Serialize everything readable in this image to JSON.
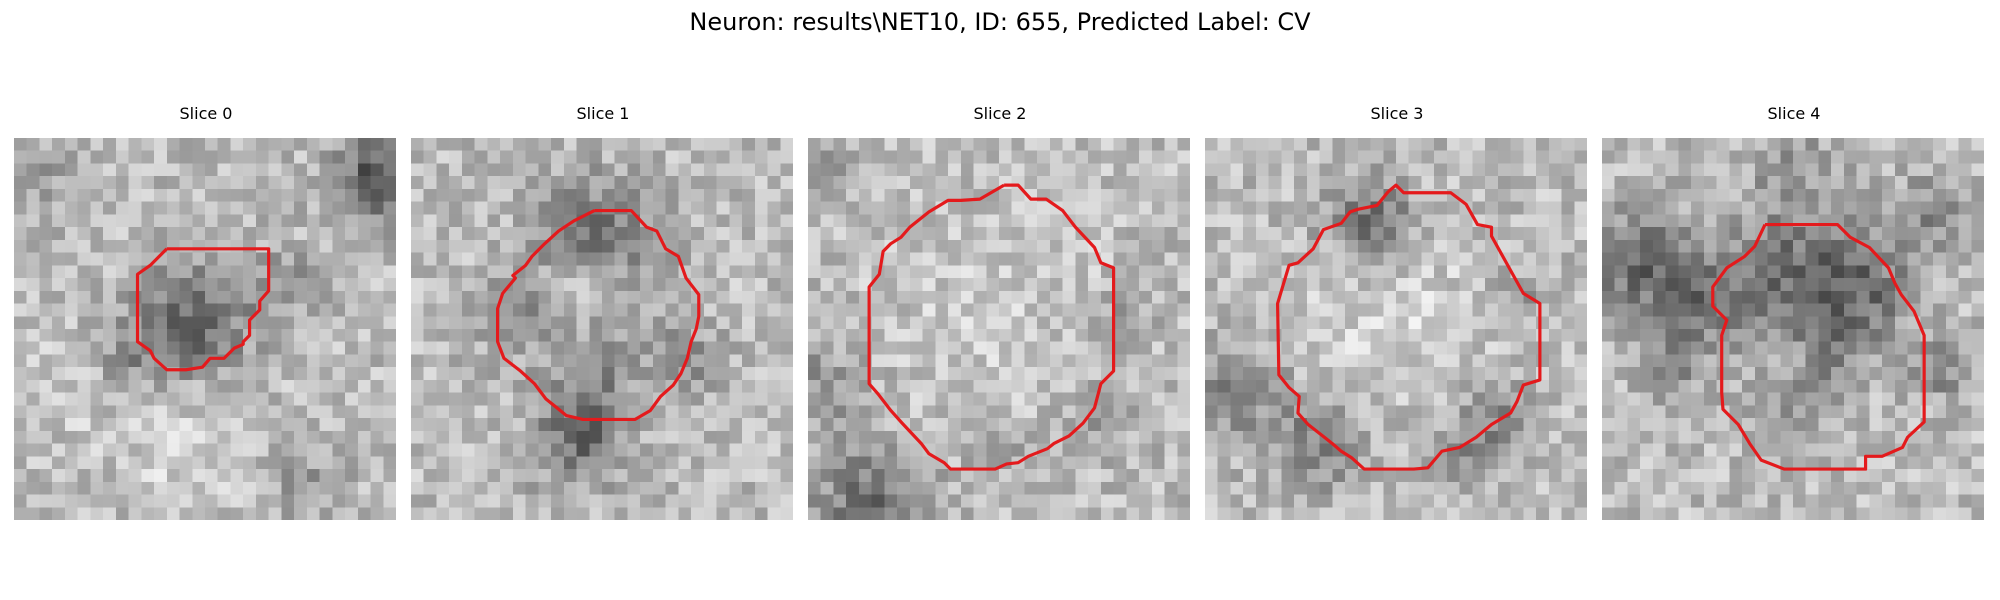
{
  "figure": {
    "title": "Neuron: results\\NET10, ID: 655, Predicted Label: CV",
    "outline_color": "#e41a1c",
    "colormap": "grayscale",
    "grid_size": 30
  },
  "panels": [
    {
      "title": "Slice 0",
      "seed": 101,
      "contour": [
        [
          12,
          8.7
        ],
        [
          20,
          8.7
        ],
        [
          20,
          12
        ],
        [
          19.3,
          12.8
        ],
        [
          19.3,
          13.5
        ],
        [
          18.5,
          14.3
        ],
        [
          18.5,
          15.5
        ],
        [
          18,
          16
        ],
        [
          18,
          16.2
        ],
        [
          17.3,
          16.5
        ],
        [
          16.5,
          17.3
        ],
        [
          15.4,
          17.3
        ],
        [
          14.8,
          18
        ],
        [
          13.5,
          18.2
        ],
        [
          12,
          18.2
        ],
        [
          11,
          17.3
        ],
        [
          10.7,
          16.7
        ],
        [
          9.7,
          16
        ],
        [
          9.7,
          10.7
        ],
        [
          10.7,
          10
        ],
        [
          12,
          8.7
        ]
      ],
      "blobs": [
        [
          14,
          14.5,
          3,
          -90
        ],
        [
          28.5,
          3,
          2.4,
          -100
        ],
        [
          8.5,
          17.5,
          2,
          -40
        ],
        [
          21,
          11.5,
          2.2,
          -35
        ],
        [
          2,
          3,
          2.4,
          -30
        ],
        [
          22.5,
          27,
          2.4,
          -30
        ],
        [
          14,
          25,
          3.5,
          25
        ],
        [
          4,
          19,
          3,
          20
        ]
      ]
    },
    {
      "title": "Slice 1",
      "seed": 202,
      "contour": [
        [
          14.4,
          5.7
        ],
        [
          17.3,
          5.7
        ],
        [
          18.5,
          7
        ],
        [
          19.3,
          7.3
        ],
        [
          20,
          8.7
        ],
        [
          21,
          9.3
        ],
        [
          21.6,
          11
        ],
        [
          22.6,
          12.3
        ],
        [
          22.6,
          14
        ],
        [
          22.4,
          15
        ],
        [
          22,
          16
        ],
        [
          21.7,
          17.3
        ],
        [
          21.2,
          18.5
        ],
        [
          20.6,
          19.4
        ],
        [
          19.6,
          20.3
        ],
        [
          18.8,
          21.4
        ],
        [
          17.6,
          22.1
        ],
        [
          16.5,
          22.1
        ],
        [
          13.5,
          22.1
        ],
        [
          12.2,
          21.8
        ],
        [
          11.6,
          21.3
        ],
        [
          10.6,
          20.5
        ],
        [
          9.7,
          19.3
        ],
        [
          8.6,
          18.3
        ],
        [
          7.3,
          17.3
        ],
        [
          6.8,
          16
        ],
        [
          6.8,
          13.4
        ],
        [
          7.2,
          12.2
        ],
        [
          8.2,
          11
        ],
        [
          8,
          10.8
        ],
        [
          9,
          10
        ],
        [
          9.5,
          9.3
        ],
        [
          10.5,
          8.3
        ],
        [
          11.6,
          7.3
        ],
        [
          12.8,
          6.5
        ],
        [
          14.4,
          5.7
        ]
      ],
      "blobs": [
        [
          14.5,
          7.5,
          3.2,
          -70
        ],
        [
          13,
          24,
          2.5,
          -70
        ],
        [
          8,
          14,
          2,
          -55
        ],
        [
          21.5,
          17.5,
          2,
          -50
        ],
        [
          14,
          20,
          2.5,
          -45
        ],
        [
          13.5,
          12,
          1.6,
          30
        ],
        [
          16,
          16,
          2,
          -25
        ]
      ]
    },
    {
      "title": "Slice 2",
      "seed": 303,
      "contour": [
        [
          15.4,
          3.7
        ],
        [
          16.5,
          3.7
        ],
        [
          17.5,
          4.8
        ],
        [
          18.7,
          4.8
        ],
        [
          20,
          5.7
        ],
        [
          21,
          7
        ],
        [
          22.5,
          8.6
        ],
        [
          23,
          9.8
        ],
        [
          24,
          10.2
        ],
        [
          24,
          18.3
        ],
        [
          23,
          19.3
        ],
        [
          22.5,
          21.2
        ],
        [
          21.6,
          22.4
        ],
        [
          20.5,
          23.4
        ],
        [
          19.3,
          24
        ],
        [
          18.8,
          24.4
        ],
        [
          17.3,
          25
        ],
        [
          16.5,
          25.5
        ],
        [
          15.6,
          25.6
        ],
        [
          14.7,
          26
        ],
        [
          13,
          26
        ],
        [
          12.8,
          26
        ],
        [
          11.2,
          26
        ],
        [
          10.7,
          25.5
        ],
        [
          9.5,
          24.8
        ],
        [
          8.9,
          24
        ],
        [
          7.4,
          22.4
        ],
        [
          6.5,
          21.4
        ],
        [
          5.5,
          20.1
        ],
        [
          4.8,
          19.3
        ],
        [
          4.8,
          17.3
        ],
        [
          4.8,
          11.7
        ],
        [
          5.6,
          10.7
        ],
        [
          5.9,
          8.9
        ],
        [
          6.5,
          8.3
        ],
        [
          7.3,
          7.8
        ],
        [
          8,
          7
        ],
        [
          9.5,
          5.8
        ],
        [
          11,
          4.9
        ],
        [
          12,
          4.9
        ],
        [
          13.5,
          4.8
        ],
        [
          15.4,
          3.7
        ]
      ],
      "blobs": [
        [
          5,
          28.5,
          3,
          -80
        ],
        [
          1,
          19.5,
          2.5,
          -40
        ],
        [
          23,
          22,
          2,
          -35
        ],
        [
          15,
          24.5,
          1.5,
          -30
        ],
        [
          1,
          2,
          2.4,
          -20
        ],
        [
          25,
          14,
          1.5,
          -25
        ],
        [
          14,
          14,
          6,
          15
        ]
      ]
    },
    {
      "title": "Slice 3",
      "seed": 404,
      "contour": [
        [
          14.4,
          4.2
        ],
        [
          15,
          3.7
        ],
        [
          15.6,
          4.3
        ],
        [
          19.3,
          4.3
        ],
        [
          20.5,
          5.2
        ],
        [
          21.4,
          6.8
        ],
        [
          22.5,
          7
        ],
        [
          22.5,
          7.7
        ],
        [
          25,
          12.2
        ],
        [
          26.3,
          13
        ],
        [
          26.3,
          19
        ],
        [
          25,
          19.4
        ],
        [
          24.5,
          20.7
        ],
        [
          24,
          21.6
        ],
        [
          22.5,
          22.5
        ],
        [
          21.3,
          23.5
        ],
        [
          20,
          24.3
        ],
        [
          18.6,
          24.6
        ],
        [
          17.5,
          25.9
        ],
        [
          16.4,
          26
        ],
        [
          15.6,
          26
        ],
        [
          12.5,
          26
        ],
        [
          11.5,
          25.1
        ],
        [
          10.7,
          24.6
        ],
        [
          10,
          24
        ],
        [
          9.5,
          23.6
        ],
        [
          8.1,
          22.5
        ],
        [
          7.3,
          21.6
        ],
        [
          7.4,
          20.3
        ],
        [
          6.6,
          19.6
        ],
        [
          5.8,
          18.6
        ],
        [
          5.7,
          13
        ],
        [
          6.6,
          10
        ],
        [
          7.3,
          9.8
        ],
        [
          8.5,
          8.7
        ],
        [
          9.3,
          7.2
        ],
        [
          10.7,
          6.7
        ],
        [
          11.4,
          5.8
        ],
        [
          12,
          5.6
        ],
        [
          13.5,
          5.3
        ],
        [
          14.4,
          4.2
        ]
      ],
      "blobs": [
        [
          13,
          6.5,
          2.5,
          -75
        ],
        [
          2,
          20,
          2.8,
          -55
        ],
        [
          9,
          24,
          2.5,
          -60
        ],
        [
          23,
          22,
          2,
          -50
        ],
        [
          25,
          12.5,
          1.5,
          -40
        ],
        [
          20,
          24.5,
          1.8,
          -40
        ],
        [
          15,
          14,
          5,
          25
        ]
      ]
    },
    {
      "title": "Slice 4",
      "seed": 505,
      "contour": [
        [
          12.8,
          6.8
        ],
        [
          18.5,
          6.8
        ],
        [
          19.5,
          7.8
        ],
        [
          21,
          8.6
        ],
        [
          22.5,
          10.2
        ],
        [
          23,
          11.4
        ],
        [
          23.5,
          12.3
        ],
        [
          24.5,
          13.6
        ],
        [
          25.3,
          15.5
        ],
        [
          25.3,
          22.3
        ],
        [
          24,
          23.5
        ],
        [
          23.6,
          24.3
        ],
        [
          22,
          25
        ],
        [
          20.7,
          25
        ],
        [
          20.7,
          26
        ],
        [
          14.3,
          26
        ],
        [
          12.5,
          25.3
        ],
        [
          11.6,
          24
        ],
        [
          10.7,
          22.5
        ],
        [
          9.5,
          21.3
        ],
        [
          9.4,
          20
        ],
        [
          9.4,
          15.5
        ],
        [
          9.8,
          14.3
        ],
        [
          8.7,
          13.2
        ],
        [
          8.7,
          11.7
        ],
        [
          9.8,
          10.2
        ],
        [
          11.2,
          9.3
        ],
        [
          12,
          8.5
        ],
        [
          12.8,
          6.8
        ]
      ],
      "blobs": [
        [
          3,
          10,
          3,
          -85
        ],
        [
          15.5,
          11,
          4,
          -80
        ],
        [
          21,
          12,
          2.5,
          -55
        ],
        [
          8,
          13,
          2.2,
          -50
        ],
        [
          18,
          17,
          2,
          -45
        ],
        [
          26.5,
          18,
          1.8,
          -55
        ],
        [
          14.5,
          21,
          2.2,
          -40
        ],
        [
          5.5,
          17.5,
          2,
          -45
        ],
        [
          15,
          2,
          2.5,
          -30
        ],
        [
          26,
          6,
          2.2,
          -45
        ],
        [
          15,
          18,
          2,
          20
        ]
      ]
    }
  ]
}
